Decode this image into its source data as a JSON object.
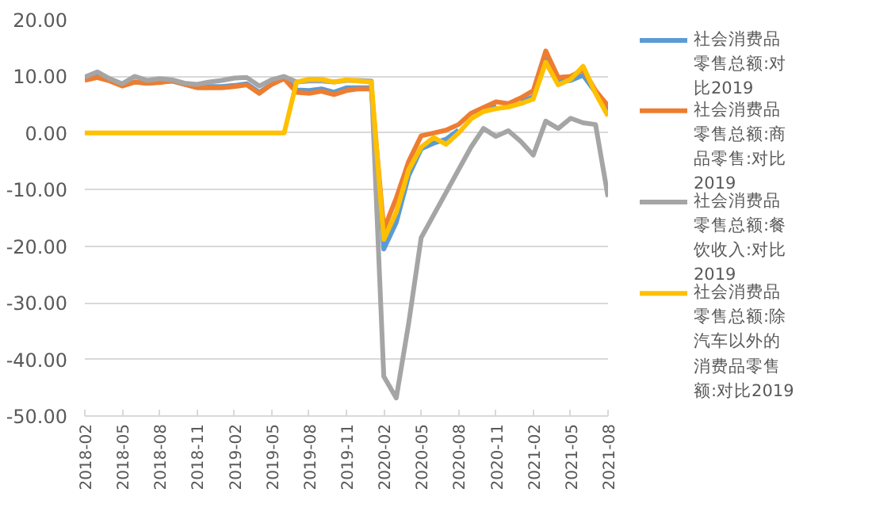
{
  "chart_data": {
    "type": "line",
    "x": [
      "2018-02",
      "2018-03",
      "2018-04",
      "2018-05",
      "2018-06",
      "2018-07",
      "2018-08",
      "2018-09",
      "2018-10",
      "2018-11",
      "2018-12",
      "2019-01",
      "2019-02",
      "2019-03",
      "2019-04",
      "2019-05",
      "2019-06",
      "2019-07",
      "2019-08",
      "2019-09",
      "2019-10",
      "2019-11",
      "2019-12",
      "2020-01",
      "2020-02",
      "2020-03",
      "2020-04",
      "2020-05",
      "2020-06",
      "2020-07",
      "2020-08",
      "2020-09",
      "2020-10",
      "2020-11",
      "2020-12",
      "2021-01",
      "2021-02",
      "2021-03",
      "2021-04",
      "2021-05",
      "2021-06",
      "2021-07",
      "2021-08"
    ],
    "series": [
      {
        "name": "社会消费品零售总额:对比2019",
        "color": "#5b9bd5",
        "values": [
          9.7,
          10.1,
          9.4,
          8.5,
          9.0,
          8.8,
          9.0,
          9.2,
          8.6,
          8.1,
          8.2,
          8.2,
          8.4,
          8.7,
          7.2,
          8.6,
          9.8,
          7.6,
          7.5,
          7.8,
          7.2,
          8.0,
          8.0,
          8.0,
          -20.5,
          -15.8,
          -7.5,
          -2.8,
          -1.8,
          -1.1,
          0.5,
          null,
          4.3,
          5.0,
          null,
          5.5,
          6.4,
          13.0,
          9.0,
          9.3,
          10.2,
          7.2,
          4.0
        ]
      },
      {
        "name": "社会消费品零售总额:商品零售:对比2019",
        "color": "#ed7d31",
        "values": [
          9.3,
          9.8,
          9.2,
          8.3,
          9.0,
          8.8,
          8.9,
          9.2,
          8.6,
          8.0,
          8.0,
          8.0,
          8.2,
          8.5,
          7.0,
          8.6,
          9.6,
          7.2,
          7.0,
          7.4,
          6.8,
          7.5,
          7.8,
          7.8,
          -17.0,
          -11.5,
          -5.0,
          -0.5,
          0.0,
          0.5,
          1.5,
          3.5,
          4.5,
          5.5,
          5.2,
          6.2,
          7.5,
          14.5,
          9.8,
          10.0,
          11.2,
          7.5,
          4.8
        ]
      },
      {
        "name": "社会消费品零售总额:餐饮收入:对比2019",
        "color": "#a5a5a5",
        "values": [
          9.9,
          10.8,
          9.6,
          8.7,
          10.0,
          9.3,
          9.6,
          9.4,
          8.8,
          8.6,
          9.0,
          9.3,
          9.7,
          9.8,
          8.3,
          9.4,
          10.0,
          9.0,
          9.2,
          9.2,
          9.0,
          9.3,
          9.3,
          9.2,
          -43.0,
          -46.8,
          -33.6,
          -18.5,
          -14.5,
          -10.5,
          -6.5,
          -2.5,
          0.8,
          -0.6,
          0.4,
          -1.5,
          -3.9,
          2.1,
          0.8,
          2.6,
          1.8,
          1.5,
          -11.3
        ]
      },
      {
        "name": "社会消费品零售总额:除汽车以外的消费品零售额:对比2019",
        "color": "#ffc000",
        "values": [
          0,
          0,
          0,
          0,
          0,
          0,
          0,
          0,
          0,
          0,
          0,
          0,
          0,
          0,
          0,
          0,
          0,
          9.0,
          9.5,
          9.5,
          9.0,
          9.4,
          9.2,
          9.0,
          -18.8,
          -14.0,
          -6.5,
          -2.5,
          -0.8,
          -2.0,
          0.0,
          2.5,
          3.8,
          4.3,
          4.6,
          5.2,
          6.0,
          12.5,
          8.5,
          9.5,
          11.8,
          7.0,
          3.0
        ]
      }
    ],
    "xlim": [
      "2018-02",
      "2021-08"
    ],
    "xticks": [
      "2018-02",
      "2018-05",
      "2018-08",
      "2018-11",
      "2019-02",
      "2019-05",
      "2019-08",
      "2019-11",
      "2020-02",
      "2020-05",
      "2020-08",
      "2020-11",
      "2021-02",
      "2021-05",
      "2021-08"
    ],
    "ylim": [
      -50,
      20
    ],
    "yticks": [
      {
        "value": -50,
        "label": "-50.00"
      },
      {
        "value": -40,
        "label": "-40.00"
      },
      {
        "value": -30,
        "label": "-30.00"
      },
      {
        "value": -20,
        "label": "-20.00"
      },
      {
        "value": -10,
        "label": "-10.00"
      },
      {
        "value": 0,
        "label": "0.00"
      },
      {
        "value": 10,
        "label": "10.00"
      },
      {
        "value": 20,
        "label": "20.00"
      }
    ],
    "grid": "y",
    "legend": "right",
    "line_style": "solid",
    "marker": "none"
  }
}
